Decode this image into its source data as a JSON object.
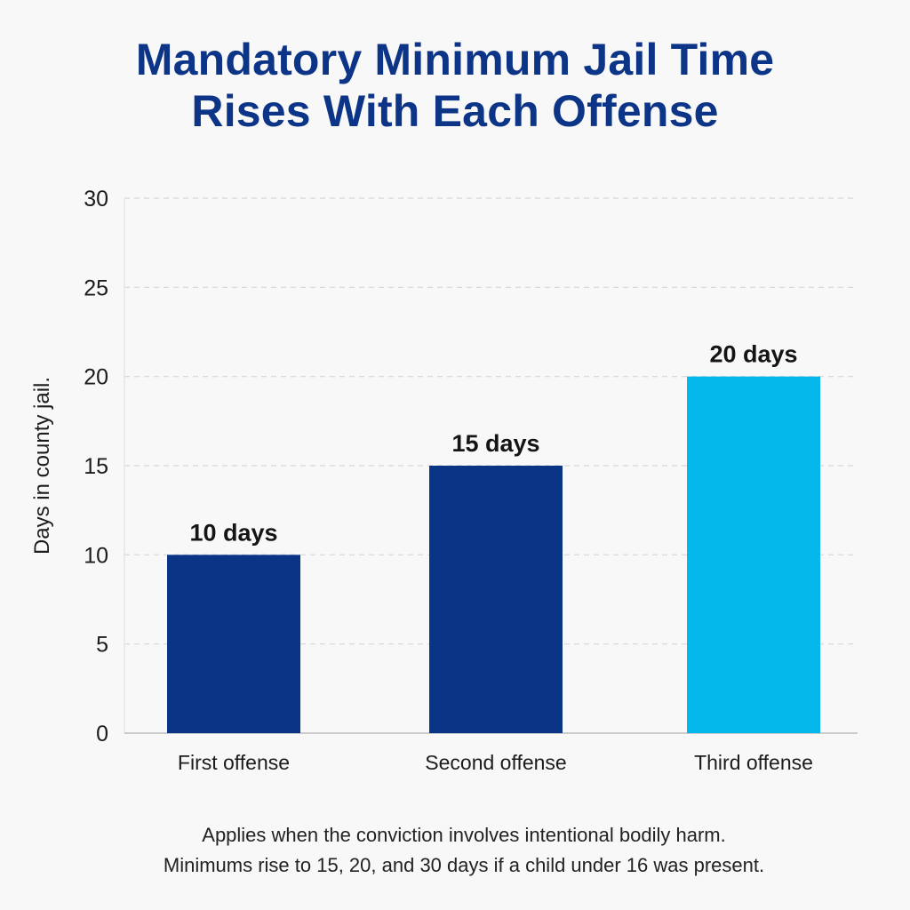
{
  "title_lines": [
    "Mandatory Minimum Jail Time",
    "Rises With Each Offense"
  ],
  "notes": [
    "Applies when the conviction involves intentional bodily harm.",
    "Minimums rise to 15, 20, and 30 days if a child under 16 was present."
  ],
  "colors": {
    "title": "#0d3587",
    "bar_dark": "#0a3587",
    "bar_light": "#04b8ec",
    "grid": "#d6d6d6",
    "axis": "#bcbcbc",
    "text": "#1c1c1c"
  },
  "chart_data": {
    "type": "bar",
    "categories": [
      "First offense",
      "Second offense",
      "Third offense"
    ],
    "values": [
      10,
      15,
      20
    ],
    "data_labels": [
      "10 days",
      "15 days",
      "20 days"
    ],
    "bar_colors": [
      "#0a3587",
      "#0a3587",
      "#04b8ec"
    ],
    "ylabel": "Days in county jail.",
    "xlabel": "",
    "ylim": [
      0,
      30
    ],
    "yticks": [
      0,
      5,
      10,
      15,
      20,
      25,
      30
    ],
    "grid": true,
    "legend": "none"
  }
}
